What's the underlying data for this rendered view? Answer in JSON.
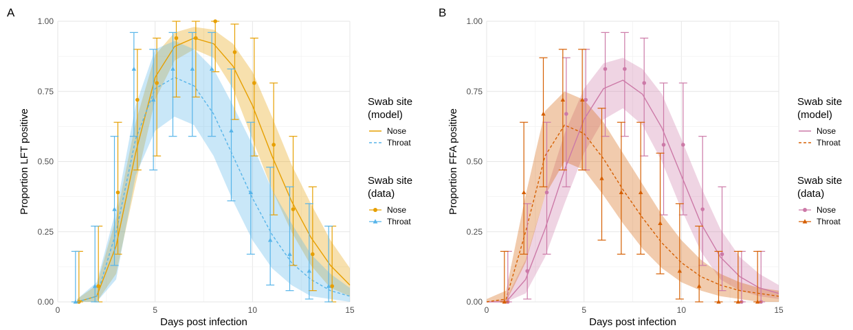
{
  "chart_data": [
    {
      "type": "line",
      "panel_label": "A",
      "xlabel": "Days post infection",
      "ylabel": "Proportion LFT positive",
      "xlim": [
        0,
        15
      ],
      "ylim": [
        0,
        1
      ],
      "x_ticks": [
        0,
        5,
        10,
        15
      ],
      "y_ticks": [
        "0.00",
        "0.25",
        "0.50",
        "0.75",
        "1.00"
      ],
      "grid": true,
      "legend_placement": "right",
      "legend_model": {
        "title_lines": [
          "Swab site",
          "(model)"
        ],
        "entries": [
          {
            "label": "Nose",
            "color": "#E69F00",
            "dash": "solid"
          },
          {
            "label": "Throat",
            "color": "#56B4E9",
            "dash": "dashed"
          }
        ]
      },
      "legend_data": {
        "title_lines": [
          "Swab site",
          "(data)"
        ],
        "entries": [
          {
            "label": "Nose",
            "color": "#E69F00",
            "marker": "circle"
          },
          {
            "label": "Throat",
            "color": "#56B4E9",
            "marker": "triangle"
          }
        ]
      },
      "model_series": [
        {
          "label": "Nose",
          "color": "#E69F00",
          "dash": "solid",
          "x": [
            1,
            2,
            3,
            4,
            5,
            6,
            7,
            8,
            9,
            10,
            11,
            12,
            13,
            14,
            15
          ],
          "y": [
            0.0,
            0.02,
            0.2,
            0.53,
            0.8,
            0.91,
            0.94,
            0.92,
            0.84,
            0.7,
            0.52,
            0.36,
            0.23,
            0.13,
            0.06
          ],
          "lower": [
            0.0,
            0.0,
            0.1,
            0.42,
            0.72,
            0.86,
            0.9,
            0.87,
            0.76,
            0.58,
            0.4,
            0.25,
            0.13,
            0.05,
            0.02
          ],
          "upper": [
            0.01,
            0.06,
            0.3,
            0.64,
            0.88,
            0.96,
            0.98,
            0.97,
            0.92,
            0.82,
            0.66,
            0.49,
            0.35,
            0.22,
            0.12
          ]
        },
        {
          "label": "Throat",
          "color": "#56B4E9",
          "dash": "dashed",
          "x": [
            1,
            2,
            3,
            4,
            5,
            6,
            7,
            8,
            9,
            10,
            11,
            12,
            13,
            14,
            15
          ],
          "y": [
            0.0,
            0.02,
            0.25,
            0.58,
            0.76,
            0.8,
            0.77,
            0.67,
            0.52,
            0.37,
            0.24,
            0.14,
            0.08,
            0.04,
            0.02
          ],
          "lower": [
            0.0,
            0.0,
            0.08,
            0.45,
            0.61,
            0.66,
            0.63,
            0.52,
            0.36,
            0.22,
            0.12,
            0.06,
            0.02,
            0.01,
            0.0
          ],
          "upper": [
            0.01,
            0.07,
            0.33,
            0.7,
            0.9,
            0.93,
            0.9,
            0.83,
            0.7,
            0.56,
            0.4,
            0.28,
            0.17,
            0.1,
            0.05
          ]
        }
      ],
      "data_series": [
        {
          "label": "Nose",
          "color": "#E69F00",
          "marker": "circle",
          "x": [
            1,
            2,
            3,
            4,
            5,
            6,
            7,
            8,
            9,
            10,
            11,
            12,
            13,
            14
          ],
          "y": [
            0.0,
            0.056,
            0.39,
            0.72,
            0.78,
            0.94,
            0.94,
            1.0,
            0.89,
            0.78,
            0.56,
            0.33,
            0.17,
            0.056
          ],
          "lower": [
            0.0,
            0.0,
            0.17,
            0.47,
            0.52,
            0.73,
            0.73,
            0.82,
            0.65,
            0.52,
            0.31,
            0.13,
            0.04,
            0.0
          ],
          "upper": [
            0.18,
            0.27,
            0.64,
            0.9,
            0.94,
            1.0,
            1.0,
            1.0,
            0.99,
            0.94,
            0.78,
            0.59,
            0.41,
            0.27
          ]
        },
        {
          "label": "Throat",
          "color": "#56B4E9",
          "marker": "triangle",
          "x": [
            1,
            2,
            3,
            4,
            5,
            6,
            7,
            8,
            9,
            10,
            11,
            12,
            13,
            14
          ],
          "y": [
            0.0,
            0.056,
            0.33,
            0.83,
            0.72,
            0.83,
            0.83,
            0.83,
            0.61,
            0.39,
            0.22,
            0.17,
            0.11,
            0.056
          ],
          "lower": [
            0.0,
            0.0,
            0.13,
            0.59,
            0.47,
            0.59,
            0.59,
            0.59,
            0.36,
            0.17,
            0.06,
            0.04,
            0.01,
            0.0
          ],
          "upper": [
            0.18,
            0.27,
            0.59,
            0.96,
            0.9,
            0.96,
            0.96,
            0.96,
            0.83,
            0.64,
            0.48,
            0.41,
            0.35,
            0.27
          ]
        }
      ]
    },
    {
      "type": "line",
      "panel_label": "B",
      "xlabel": "Days post infection",
      "ylabel": "Proportion FFA positive",
      "xlim": [
        0,
        15
      ],
      "ylim": [
        0,
        1
      ],
      "x_ticks": [
        0,
        5,
        10,
        15
      ],
      "y_ticks": [
        "0.00",
        "0.25",
        "0.50",
        "0.75",
        "1.00"
      ],
      "grid": true,
      "legend_placement": "right",
      "legend_model": {
        "title_lines": [
          "Swab site",
          "(model)"
        ],
        "entries": [
          {
            "label": "Nose",
            "color": "#CC79A7",
            "dash": "solid"
          },
          {
            "label": "Throat",
            "color": "#D55E00",
            "dash": "dashed"
          }
        ]
      },
      "legend_data": {
        "title_lines": [
          "Swab site",
          "(data)"
        ],
        "entries": [
          {
            "label": "Nose",
            "color": "#CC79A7",
            "marker": "circle"
          },
          {
            "label": "Throat",
            "color": "#D55E00",
            "marker": "triangle"
          }
        ]
      },
      "model_series": [
        {
          "label": "Nose",
          "color": "#CC79A7",
          "dash": "solid",
          "x": [
            0,
            1,
            2,
            3,
            4,
            5,
            6,
            7,
            8,
            9,
            10,
            11,
            12,
            13,
            14,
            15
          ],
          "y": [
            0.0,
            0.0,
            0.08,
            0.26,
            0.47,
            0.65,
            0.76,
            0.79,
            0.74,
            0.62,
            0.45,
            0.28,
            0.16,
            0.09,
            0.05,
            0.03
          ],
          "lower": [
            0.0,
            0.0,
            0.03,
            0.16,
            0.35,
            0.53,
            0.65,
            0.69,
            0.63,
            0.5,
            0.33,
            0.18,
            0.08,
            0.04,
            0.02,
            0.01
          ],
          "upper": [
            0.0,
            0.01,
            0.15,
            0.38,
            0.6,
            0.76,
            0.85,
            0.87,
            0.83,
            0.74,
            0.58,
            0.41,
            0.26,
            0.16,
            0.1,
            0.06
          ]
        },
        {
          "label": "Throat",
          "color": "#D55E00",
          "dash": "dashed",
          "x": [
            0,
            1,
            2,
            3,
            4,
            5,
            6,
            7,
            8,
            9,
            10,
            11,
            12,
            13,
            14,
            15
          ],
          "y": [
            0.0,
            0.01,
            0.25,
            0.52,
            0.63,
            0.6,
            0.51,
            0.4,
            0.3,
            0.21,
            0.14,
            0.09,
            0.06,
            0.04,
            0.03,
            0.02
          ],
          "lower": [
            0.0,
            0.0,
            0.14,
            0.38,
            0.5,
            0.47,
            0.38,
            0.28,
            0.19,
            0.12,
            0.07,
            0.04,
            0.02,
            0.01,
            0.0,
            0.0
          ],
          "upper": [
            0.01,
            0.04,
            0.38,
            0.68,
            0.75,
            0.72,
            0.64,
            0.53,
            0.42,
            0.31,
            0.22,
            0.15,
            0.1,
            0.07,
            0.05,
            0.04
          ]
        }
      ],
      "data_series": [
        {
          "label": "Nose",
          "color": "#CC79A7",
          "marker": "circle",
          "x": [
            1,
            2,
            3,
            4,
            5,
            6,
            7,
            8,
            9,
            10,
            11,
            12,
            13,
            14
          ],
          "y": [
            0.0,
            0.11,
            0.39,
            0.67,
            0.72,
            0.83,
            0.83,
            0.78,
            0.56,
            0.56,
            0.33,
            0.17,
            0.0,
            0.0
          ],
          "lower": [
            0.0,
            0.01,
            0.17,
            0.41,
            0.47,
            0.59,
            0.59,
            0.52,
            0.31,
            0.31,
            0.13,
            0.04,
            0.0,
            0.0
          ],
          "upper": [
            0.18,
            0.35,
            0.64,
            0.87,
            0.9,
            0.96,
            0.96,
            0.94,
            0.78,
            0.78,
            0.59,
            0.41,
            0.18,
            0.18
          ]
        },
        {
          "label": "Throat",
          "color": "#D55E00",
          "marker": "triangle",
          "x": [
            1,
            2,
            3,
            4,
            5,
            6,
            7,
            8,
            9,
            10,
            11,
            12,
            13,
            14
          ],
          "y": [
            0.0,
            0.39,
            0.67,
            0.72,
            0.72,
            0.44,
            0.39,
            0.39,
            0.28,
            0.11,
            0.056,
            0.0,
            0.0,
            0.0
          ],
          "lower": [
            0.0,
            0.17,
            0.41,
            0.47,
            0.47,
            0.22,
            0.17,
            0.17,
            0.1,
            0.01,
            0.0,
            0.0,
            0.0,
            0.0
          ],
          "upper": [
            0.18,
            0.64,
            0.87,
            0.9,
            0.9,
            0.69,
            0.64,
            0.64,
            0.53,
            0.35,
            0.27,
            0.18,
            0.18,
            0.18
          ]
        }
      ]
    }
  ]
}
